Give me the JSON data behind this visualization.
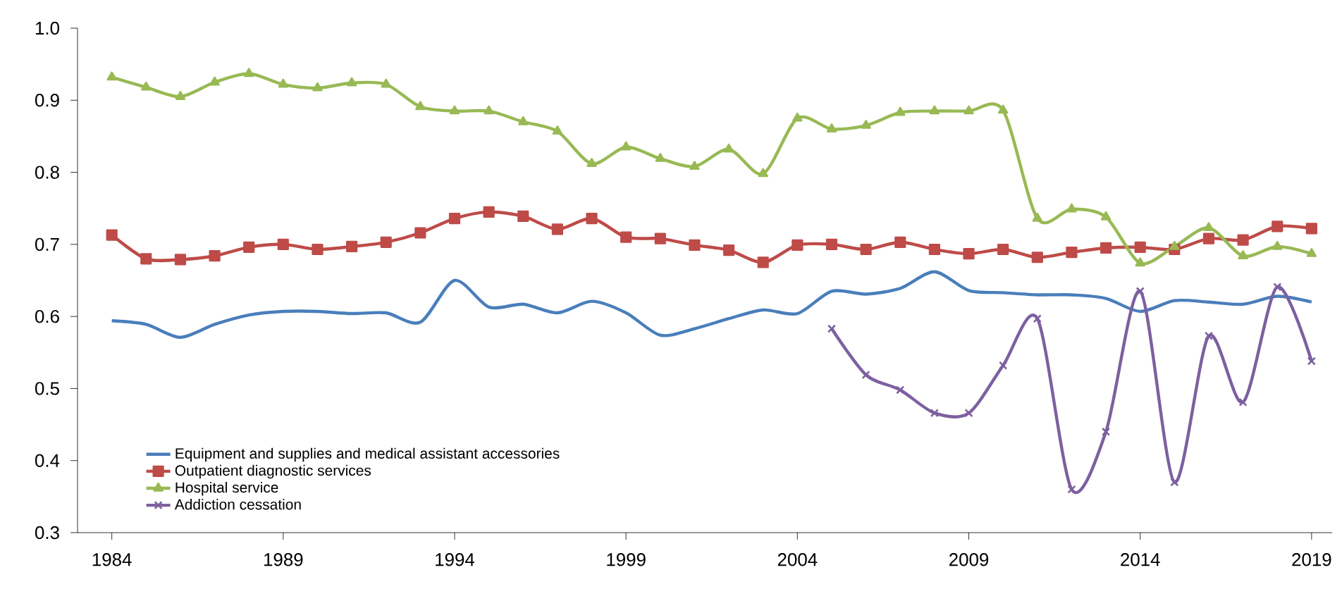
{
  "chart_data": {
    "type": "line",
    "x": [
      1984,
      1985,
      1986,
      1987,
      1988,
      1989,
      1990,
      1991,
      1992,
      1993,
      1994,
      1995,
      1996,
      1997,
      1998,
      1999,
      2000,
      2001,
      2002,
      2003,
      2004,
      2005,
      2006,
      2007,
      2008,
      2009,
      2010,
      2011,
      2012,
      2013,
      2014,
      2015,
      2016,
      2017,
      2018,
      2019
    ],
    "series": [
      {
        "name": "Equipment and supplies and medical assistant accessories",
        "color": "#4a7ebb",
        "marker": "none",
        "values": [
          0.594,
          0.589,
          0.571,
          0.589,
          0.602,
          0.607,
          0.607,
          0.604,
          0.605,
          0.592,
          0.65,
          0.613,
          0.617,
          0.605,
          0.621,
          0.605,
          0.574,
          0.583,
          0.597,
          0.609,
          0.604,
          0.635,
          0.631,
          0.639,
          0.662,
          0.636,
          0.633,
          0.63,
          0.63,
          0.625,
          0.607,
          0.622,
          0.62,
          0.617,
          0.628,
          0.62
        ]
      },
      {
        "name": "Outpatient diagnostic services",
        "color": "#be4b48",
        "marker": "square",
        "values": [
          0.713,
          0.68,
          0.679,
          0.684,
          0.696,
          0.7,
          0.693,
          0.697,
          0.703,
          0.716,
          0.736,
          0.745,
          0.739,
          0.721,
          0.736,
          0.71,
          0.708,
          0.699,
          0.692,
          0.675,
          0.699,
          0.7,
          0.693,
          0.703,
          0.693,
          0.687,
          0.693,
          0.682,
          0.689,
          0.695,
          0.696,
          0.693,
          0.708,
          0.706,
          0.725,
          0.722
        ]
      },
      {
        "name": "Hospital service",
        "color": "#98b954",
        "marker": "triangle",
        "values": [
          0.932,
          0.918,
          0.905,
          0.925,
          0.937,
          0.922,
          0.917,
          0.924,
          0.922,
          0.891,
          0.885,
          0.885,
          0.87,
          0.857,
          0.812,
          0.835,
          0.819,
          0.808,
          0.832,
          0.798,
          0.875,
          0.86,
          0.865,
          0.883,
          0.885,
          0.885,
          0.886,
          0.736,
          0.749,
          0.738,
          0.674,
          0.697,
          0.723,
          0.684,
          0.697,
          0.687
        ]
      },
      {
        "name": "Addiction cessation",
        "color": "#7d60a0",
        "marker": "cross",
        "values": [
          null,
          null,
          null,
          null,
          null,
          null,
          null,
          null,
          null,
          null,
          null,
          null,
          null,
          null,
          null,
          null,
          null,
          null,
          null,
          null,
          null,
          0.583,
          0.519,
          0.498,
          0.466,
          0.466,
          0.532,
          0.597,
          0.36,
          0.44,
          0.635,
          0.37,
          0.573,
          0.481,
          0.641,
          0.538
        ]
      }
    ],
    "xlim": [
      1983,
      2019.6
    ],
    "xticks": [
      1984,
      1989,
      1994,
      1999,
      2004,
      2009,
      2014,
      2019
    ],
    "ylim": [
      0.3,
      1.0
    ],
    "yticks": [
      {
        "value": 0.3,
        "label": "0.3"
      },
      {
        "value": 0.4,
        "label": "0.4"
      },
      {
        "value": 0.5,
        "label": "0.5"
      },
      {
        "value": 0.6,
        "label": "0.6"
      },
      {
        "value": 0.7,
        "label": "0.7"
      },
      {
        "value": 0.8,
        "label": "0.8"
      },
      {
        "value": 0.9,
        "label": "0.9"
      },
      {
        "value": 1.0,
        "label": "1.0"
      }
    ],
    "grid": false,
    "legend": "bottom left"
  }
}
